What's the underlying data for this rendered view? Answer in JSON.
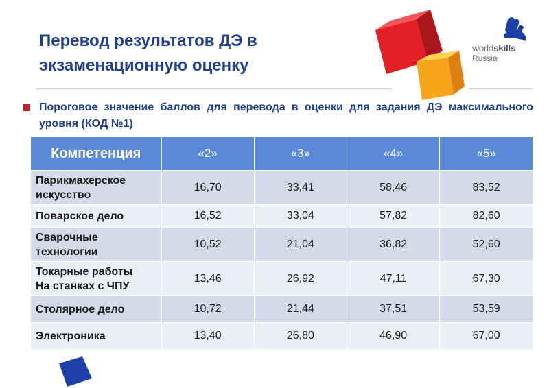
{
  "slide": {
    "title_line1": "Перевод результатов ДЭ в",
    "title_line2": "экзаменационную оценку",
    "subtitle": "Пороговое значение баллов для перевода в оценки для задания ДЭ максимального уровня (КОД №1)"
  },
  "logo": {
    "brand_world": "world",
    "brand_skills": "skills",
    "brand_country": "Russia"
  },
  "colors": {
    "title": "#1f3f8f",
    "header_bg": "#5a89d8",
    "row_odd": "#d3dbe9",
    "row_even": "#eaeef5",
    "bullet": "#c0272d",
    "cube_red": "#e31e24",
    "cube_orange": "#f7a51b",
    "cube_blue": "#1e3fa6"
  },
  "table": {
    "headers": [
      "Компетенция",
      "«2»",
      "«3»",
      "«4»",
      "«5»"
    ],
    "rows": [
      {
        "name_line1": "Парикмахерское",
        "name_line2": "искусство",
        "values": [
          "16,70",
          "33,41",
          "58,46",
          "83,52"
        ]
      },
      {
        "name_line1": "Поварское дело",
        "name_line2": "",
        "values": [
          "16,52",
          "33,04",
          "57,82",
          "82,60"
        ]
      },
      {
        "name_line1": "Сварочные",
        "name_line2": "технологии",
        "values": [
          "10,52",
          "21,04",
          "36,82",
          "52,60"
        ]
      },
      {
        "name_line1": "Токарные работы",
        "name_line2": "На станках с ЧПУ",
        "values": [
          "13,46",
          "26,92",
          "47,11",
          "67,30"
        ]
      },
      {
        "name_line1": "Столярное дело",
        "name_line2": "",
        "values": [
          "10,72",
          "21,44",
          "37,51",
          "53,59"
        ]
      },
      {
        "name_line1": "Электроника",
        "name_line2": "",
        "values": [
          "13,40",
          "26,80",
          "46,90",
          "67,00"
        ]
      }
    ]
  }
}
